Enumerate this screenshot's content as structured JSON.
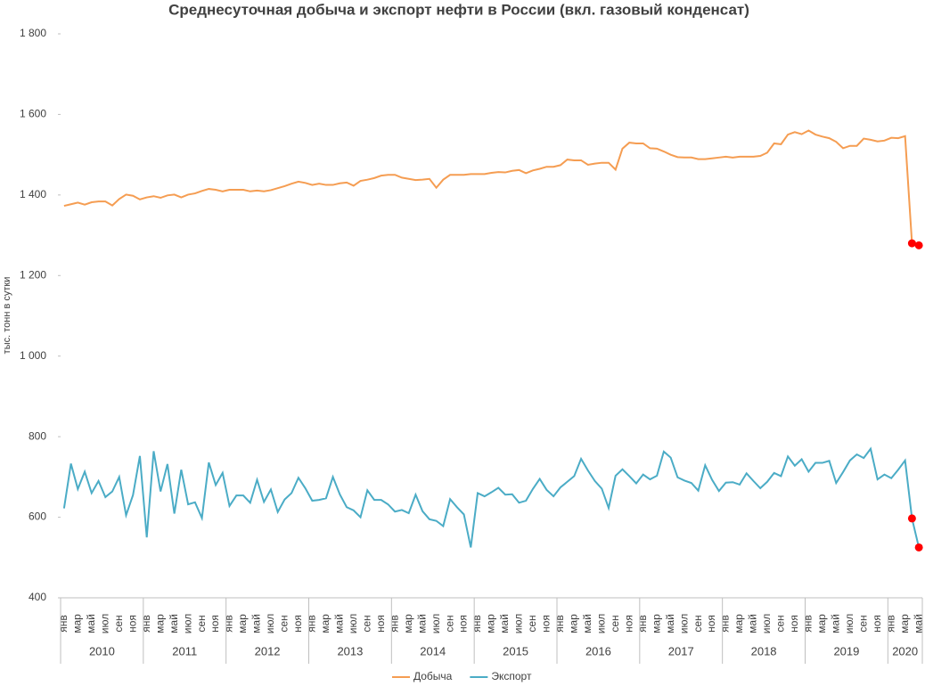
{
  "chart_data": {
    "type": "line",
    "title": "Среднесуточная добыча и экспорт нефти в России (вкл. газовый конденсат)",
    "y_label": "тыс. тонн в сутки",
    "categories": [
      "янв",
      null,
      "мар",
      null,
      "май",
      null,
      "июл",
      null,
      "сен",
      null,
      "ноя",
      null,
      "янв",
      null,
      "мар",
      null,
      "май",
      null,
      "июл",
      null,
      "сен",
      null,
      "ноя",
      null,
      "янв",
      null,
      "мар",
      null,
      "май",
      null,
      "июл",
      null,
      "сен",
      null,
      "ноя",
      null,
      "янв",
      null,
      "мар",
      null,
      "май",
      null,
      "июл",
      null,
      "сен",
      null,
      "ноя",
      null,
      "янв",
      null,
      "мар",
      null,
      "май",
      null,
      "июл",
      null,
      "сен",
      null,
      "ноя",
      null,
      "янв",
      null,
      "мар",
      null,
      "май",
      null,
      "июл",
      null,
      "сен",
      null,
      "ноя",
      null,
      "янв",
      null,
      "мар",
      null,
      "май",
      null,
      "июл",
      null,
      "сен",
      null,
      "ноя",
      null,
      "янв",
      null,
      "мар",
      null,
      "май",
      null,
      "июл",
      null,
      "сен",
      null,
      "ноя",
      null,
      "янв",
      null,
      "мар",
      null,
      "май",
      null,
      "июл",
      null,
      "сен",
      null,
      "ноя",
      null,
      "янв",
      null,
      "мар",
      null,
      "май",
      null,
      "июл",
      null,
      "сен",
      null,
      "ноя",
      null,
      "янв",
      null,
      "мар",
      null,
      "май"
    ],
    "years": [
      "2010",
      "2011",
      "2012",
      "2013",
      "2014",
      "2015",
      "2016",
      "2017",
      "2018",
      "2019",
      "2020"
    ],
    "series": [
      {
        "name": "Добыча",
        "color": "#f59d52",
        "values": [
          1373,
          1377,
          1381,
          1376,
          1382,
          1384,
          1384,
          1374,
          1390,
          1401,
          1398,
          1389,
          1394,
          1397,
          1393,
          1399,
          1401,
          1394,
          1401,
          1404,
          1410,
          1415,
          1413,
          1409,
          1413,
          1413,
          1413,
          1409,
          1411,
          1409,
          1412,
          1417,
          1422,
          1428,
          1433,
          1430,
          1425,
          1428,
          1425,
          1425,
          1429,
          1431,
          1423,
          1435,
          1438,
          1442,
          1448,
          1450,
          1450,
          1443,
          1440,
          1437,
          1438,
          1440,
          1418,
          1438,
          1450,
          1450,
          1450,
          1452,
          1452,
          1452,
          1455,
          1457,
          1456,
          1460,
          1462,
          1454,
          1461,
          1465,
          1470,
          1470,
          1474,
          1488,
          1486,
          1486,
          1475,
          1478,
          1480,
          1480,
          1463,
          1515,
          1530,
          1528,
          1528,
          1516,
          1515,
          1508,
          1500,
          1494,
          1493,
          1493,
          1489,
          1489,
          1491,
          1493,
          1495,
          1493,
          1495,
          1495,
          1495,
          1497,
          1505,
          1528,
          1526,
          1550,
          1556,
          1551,
          1560,
          1550,
          1545,
          1541,
          1532,
          1516,
          1522,
          1522,
          1540,
          1537,
          1533,
          1535,
          1542,
          1541,
          1546,
          1280,
          1275
        ]
      },
      {
        "name": "Экспорт",
        "color": "#4bacc6",
        "values": [
          622,
          733,
          670,
          713,
          660,
          690,
          650,
          664,
          700,
          605,
          655,
          752,
          550,
          764,
          664,
          732,
          609,
          718,
          632,
          637,
          598,
          736,
          680,
          710,
          628,
          654,
          654,
          636,
          693,
          638,
          669,
          613,
          644,
          660,
          698,
          672,
          641,
          643,
          647,
          700,
          657,
          625,
          617,
          600,
          667,
          643,
          643,
          632,
          614,
          618,
          610,
          656,
          615,
          595,
          591,
          578,
          645,
          625,
          607,
          525,
          660,
          652,
          662,
          673,
          656,
          657,
          636,
          641,
          670,
          695,
          668,
          652,
          674,
          688,
          702,
          745,
          716,
          690,
          671,
          623,
          703,
          719,
          702,
          684,
          706,
          694,
          703,
          763,
          748,
          699,
          691,
          685,
          666,
          729,
          693,
          665,
          686,
          687,
          681,
          709,
          690,
          672,
          688,
          710,
          702,
          751,
          728,
          744,
          713,
          735,
          735,
          740,
          685,
          712,
          741,
          756,
          747,
          770,
          694,
          706,
          697,
          718,
          741,
          597,
          525
        ]
      }
    ],
    "highlight": {
      "color": "#ff0000",
      "indices": [
        123,
        124
      ]
    },
    "ylim": [
      400,
      1800
    ],
    "yticks": [
      400,
      600,
      800,
      {
        "value": 1000,
        "label": "1 000"
      },
      {
        "value": 1200,
        "label": "1 200"
      },
      {
        "value": 1400,
        "label": "1 400"
      },
      {
        "value": 1600,
        "label": "1 600"
      },
      {
        "value": 1800,
        "label": "1 800"
      }
    ],
    "grid": false,
    "legend": "bottom"
  }
}
